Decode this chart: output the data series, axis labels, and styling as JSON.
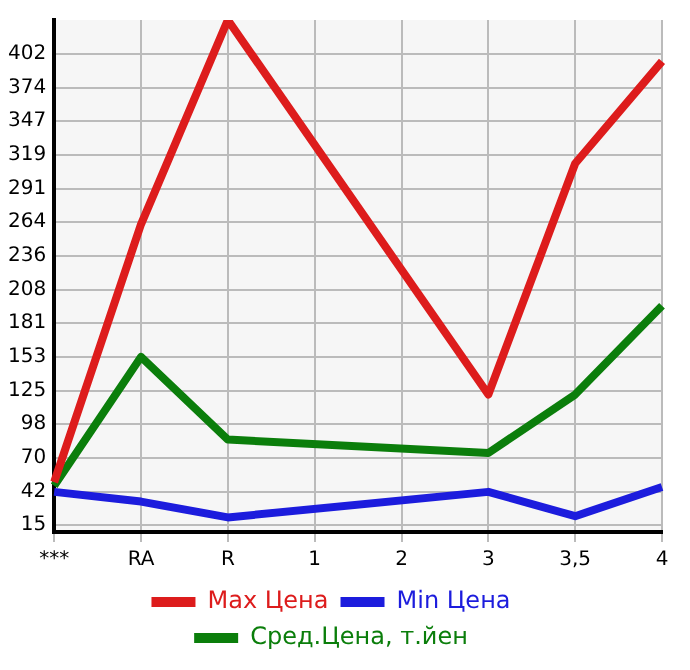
{
  "chart_data": {
    "type": "line",
    "categories": [
      "***",
      "RA",
      "R",
      "1",
      "2",
      "3",
      "3,5",
      "4"
    ],
    "series": [
      {
        "name": "Max Цена",
        "color": "#dd1c1c",
        "values": [
          50,
          262,
          430,
          null,
          null,
          122,
          312,
          396
        ]
      },
      {
        "name": "Min Цена",
        "color": "#1c1cdd",
        "values": [
          42,
          34,
          21,
          null,
          null,
          42,
          22,
          46
        ]
      },
      {
        "name": "Сред.Цена, т.йен",
        "color": "#0b7e0b",
        "values": [
          47,
          153,
          85,
          null,
          null,
          74,
          122,
          195
        ]
      }
    ],
    "ylim": [
      9,
      430
    ],
    "yticks": [
      15,
      42,
      70,
      98,
      125,
      153,
      181,
      208,
      236,
      264,
      291,
      319,
      347,
      374,
      402
    ],
    "grid": true,
    "legend": "bottom",
    "marker": "none"
  }
}
